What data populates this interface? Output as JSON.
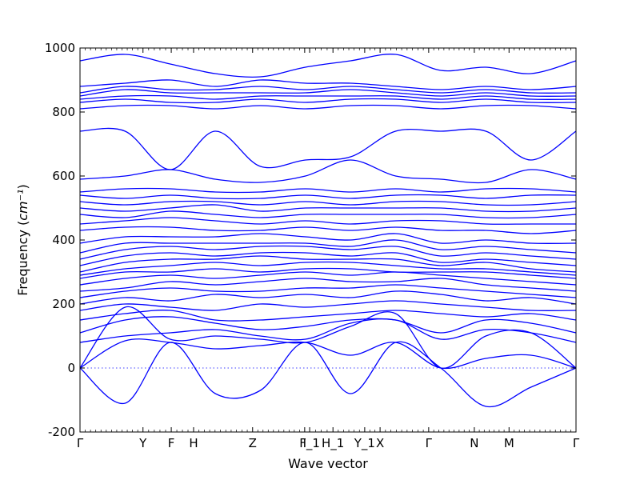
{
  "chart_data": {
    "type": "line",
    "title": "",
    "xlabel": "Wave vector",
    "ylabel": "Frequency",
    "ylabel_unit": "cm⁻¹",
    "ylim": [
      -200,
      1000
    ],
    "yticks": [
      -200,
      0,
      200,
      400,
      600,
      800,
      1000
    ],
    "grid": false,
    "legend": "none",
    "reference_line": 0,
    "color": "#0000ff",
    "x_path": [
      {
        "label": "Γ",
        "x": 0.0
      },
      {
        "label": "Y",
        "x": 0.127
      },
      {
        "label": "F",
        "x": 0.184
      },
      {
        "label": "H",
        "x": 0.229
      },
      {
        "label": "Z",
        "x": 0.348
      },
      {
        "label": "I",
        "x": 0.453
      },
      {
        "label": "F_1",
        "x": 0.463
      },
      {
        "label": "H_1",
        "x": 0.51
      },
      {
        "label": "Y_1",
        "x": 0.574
      },
      {
        "label": "X",
        "x": 0.605
      },
      {
        "label": "Γ",
        "x": 0.703
      },
      {
        "label": "N",
        "x": 0.795
      },
      {
        "label": "M",
        "x": 0.865
      },
      {
        "label": "Γ",
        "x": 1.0
      }
    ],
    "series": [
      {
        "values": [
          0,
          -110,
          80,
          -80,
          -70,
          80,
          -80,
          80,
          0,
          -120,
          -60,
          0
        ]
      },
      {
        "values": [
          0,
          85,
          80,
          60,
          70,
          80,
          40,
          80,
          0,
          30,
          40,
          0
        ]
      },
      {
        "values": [
          0,
          190,
          90,
          100,
          90,
          80,
          130,
          170,
          0,
          100,
          110,
          0
        ]
      },
      {
        "values": [
          80,
          100,
          110,
          120,
          100,
          90,
          140,
          150,
          90,
          120,
          110,
          80
        ]
      },
      {
        "values": [
          110,
          150,
          160,
          140,
          120,
          130,
          150,
          150,
          110,
          150,
          140,
          110
        ]
      },
      {
        "values": [
          150,
          170,
          180,
          150,
          150,
          160,
          170,
          180,
          170,
          160,
          170,
          150
        ]
      },
      {
        "values": [
          180,
          200,
          190,
          180,
          200,
          190,
          200,
          210,
          200,
          190,
          180,
          180
        ]
      },
      {
        "values": [
          200,
          220,
          210,
          230,
          220,
          230,
          220,
          240,
          230,
          210,
          220,
          200
        ]
      },
      {
        "values": [
          220,
          240,
          250,
          240,
          240,
          250,
          250,
          260,
          250,
          240,
          230,
          220
        ]
      },
      {
        "values": [
          240,
          250,
          270,
          260,
          270,
          280,
          270,
          270,
          280,
          260,
          250,
          240
        ]
      },
      {
        "values": [
          260,
          280,
          290,
          280,
          290,
          300,
          290,
          300,
          290,
          280,
          270,
          260
        ]
      },
      {
        "values": [
          280,
          300,
          300,
          310,
          300,
          310,
          310,
          300,
          300,
          300,
          290,
          280
        ]
      },
      {
        "values": [
          290,
          310,
          320,
          330,
          320,
          330,
          330,
          320,
          310,
          310,
          300,
          290
        ]
      },
      {
        "values": [
          300,
          330,
          340,
          340,
          350,
          340,
          340,
          340,
          320,
          330,
          310,
          300
        ]
      },
      {
        "values": [
          320,
          350,
          360,
          350,
          360,
          360,
          350,
          360,
          330,
          340,
          330,
          320
        ]
      },
      {
        "values": [
          340,
          370,
          380,
          370,
          380,
          380,
          370,
          380,
          350,
          360,
          350,
          340
        ]
      },
      {
        "values": [
          360,
          390,
          390,
          390,
          390,
          390,
          380,
          400,
          370,
          380,
          370,
          360
        ]
      },
      {
        "values": [
          390,
          410,
          410,
          410,
          420,
          410,
          400,
          420,
          390,
          400,
          390,
          390
        ]
      },
      {
        "values": [
          430,
          440,
          440,
          430,
          430,
          440,
          430,
          440,
          430,
          430,
          420,
          430
        ]
      },
      {
        "values": [
          450,
          460,
          470,
          460,
          450,
          460,
          450,
          460,
          460,
          450,
          450,
          450
        ]
      },
      {
        "values": [
          480,
          470,
          490,
          480,
          470,
          480,
          480,
          480,
          480,
          470,
          470,
          480
        ]
      },
      {
        "values": [
          500,
          490,
          500,
          510,
          490,
          500,
          500,
          500,
          500,
          490,
          490,
          500
        ]
      },
      {
        "values": [
          520,
          510,
          520,
          520,
          510,
          520,
          510,
          520,
          520,
          510,
          510,
          520
        ]
      },
      {
        "values": [
          540,
          530,
          540,
          530,
          530,
          540,
          530,
          540,
          540,
          530,
          540,
          540
        ]
      },
      {
        "values": [
          550,
          560,
          560,
          550,
          550,
          560,
          550,
          560,
          550,
          560,
          560,
          550
        ]
      },
      {
        "values": [
          590,
          600,
          620,
          590,
          580,
          600,
          650,
          600,
          590,
          580,
          620,
          590
        ]
      },
      {
        "values": [
          740,
          740,
          620,
          740,
          630,
          650,
          660,
          740,
          740,
          740,
          650,
          740
        ]
      },
      {
        "values": [
          810,
          820,
          820,
          810,
          820,
          810,
          820,
          820,
          810,
          820,
          820,
          810
        ]
      },
      {
        "values": [
          830,
          840,
          830,
          830,
          840,
          830,
          840,
          840,
          830,
          840,
          830,
          830
        ]
      },
      {
        "values": [
          840,
          850,
          850,
          840,
          850,
          850,
          850,
          850,
          840,
          850,
          840,
          840
        ]
      },
      {
        "values": [
          850,
          870,
          860,
          860,
          860,
          860,
          870,
          860,
          850,
          860,
          850,
          850
        ]
      },
      {
        "values": [
          860,
          880,
          870,
          870,
          880,
          870,
          880,
          870,
          860,
          870,
          860,
          860
        ]
      },
      {
        "values": [
          880,
          890,
          900,
          880,
          900,
          890,
          890,
          880,
          870,
          880,
          870,
          880
        ]
      },
      {
        "values": [
          960,
          980,
          950,
          920,
          910,
          940,
          960,
          980,
          930,
          940,
          920,
          960
        ]
      }
    ]
  }
}
